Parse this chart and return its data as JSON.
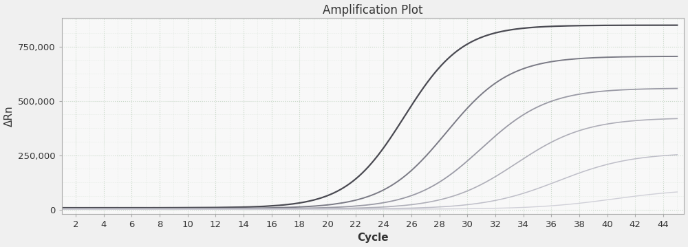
{
  "title": "Amplification Plot",
  "xlabel": "Cycle",
  "ylabel": "ΔRn",
  "xlim": [
    1,
    45.5
  ],
  "ylim": [
    -20000,
    880000
  ],
  "xticks": [
    2,
    4,
    6,
    8,
    10,
    12,
    14,
    16,
    18,
    20,
    22,
    24,
    26,
    28,
    30,
    32,
    34,
    36,
    38,
    40,
    42,
    44
  ],
  "yticks": [
    0,
    250000,
    500000,
    750000
  ],
  "ytick_labels": [
    "0",
    "250,000",
    "500,000",
    "750,000"
  ],
  "background_color": "#f0f0f0",
  "plot_bg_color": "#f8f8f8",
  "grid_color": "#c8d8c8",
  "curves": [
    {
      "color": "#4a4a52",
      "linewidth": 1.6,
      "midpoint": 25.5,
      "L": 840000,
      "k": 0.48,
      "baseline": 8000,
      "noise_scale": 1200
    },
    {
      "color": "#7a7a85",
      "linewidth": 1.4,
      "midpoint": 28.5,
      "L": 700000,
      "k": 0.44,
      "baseline": 5000,
      "noise_scale": 800
    },
    {
      "color": "#9a9aa5",
      "linewidth": 1.3,
      "midpoint": 31.0,
      "L": 555000,
      "k": 0.42,
      "baseline": 3500,
      "noise_scale": 600
    },
    {
      "color": "#aeaeb8",
      "linewidth": 1.2,
      "midpoint": 33.5,
      "L": 420000,
      "k": 0.4,
      "baseline": 2500,
      "noise_scale": 500
    },
    {
      "color": "#bebec8",
      "linewidth": 1.1,
      "midpoint": 36.5,
      "L": 260000,
      "k": 0.38,
      "baseline": 2000,
      "noise_scale": 400
    },
    {
      "color": "#d0d0d8",
      "linewidth": 1.0,
      "midpoint": 40.5,
      "L": 95000,
      "k": 0.36,
      "baseline": 1500,
      "noise_scale": 300
    }
  ],
  "title_fontsize": 12,
  "label_fontsize": 11,
  "tick_fontsize": 9.5
}
